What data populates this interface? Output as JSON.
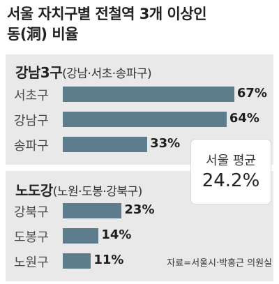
{
  "title": {
    "line1": "서울 자치구별 전철역 3개 이상인",
    "line2": "동(洞) 비율"
  },
  "chart_data": {
    "type": "bar",
    "title": "서울 자치구별 전철역 3개 이상인 동(洞) 비율",
    "unit": "%",
    "groups": [
      {
        "name": "강남3구",
        "subtitle": "(강남·서초·송파구)",
        "categories": [
          "서초구",
          "강남구",
          "송파구"
        ],
        "values": [
          67,
          64,
          33
        ],
        "value_labels": [
          "67%",
          "64%",
          "33%"
        ]
      },
      {
        "name": "노도강",
        "subtitle": "(노원·도봉·강북구)",
        "categories": [
          "강북구",
          "도봉구",
          "노원구"
        ],
        "values": [
          23,
          14,
          11
        ],
        "value_labels": [
          "23%",
          "14%",
          "11%"
        ]
      }
    ],
    "average": {
      "label": "서울 평균",
      "value": 24.2,
      "value_label": "24.2%"
    },
    "source": "자료=서울시·박홍근 의원실",
    "colors": {
      "bar": "#5d7c8c",
      "panel": "#e9e9e9",
      "callout_bg": "#ffffff"
    }
  }
}
